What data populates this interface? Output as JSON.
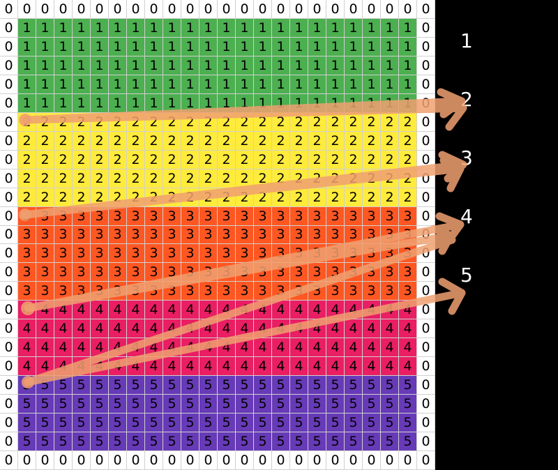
{
  "grid": {
    "rows": [
      [
        0,
        0,
        0,
        0,
        0,
        0,
        0,
        0,
        0,
        0,
        0,
        0,
        0,
        0,
        0,
        0,
        0,
        0,
        0,
        0,
        0,
        0,
        0,
        0
      ],
      [
        0,
        1,
        1,
        1,
        1,
        1,
        1,
        1,
        1,
        1,
        1,
        1,
        1,
        1,
        1,
        1,
        1,
        1,
        1,
        1,
        1,
        1,
        1,
        0
      ],
      [
        0,
        1,
        1,
        1,
        1,
        1,
        1,
        1,
        1,
        1,
        1,
        1,
        1,
        1,
        1,
        1,
        1,
        1,
        1,
        1,
        1,
        1,
        1,
        0
      ],
      [
        0,
        1,
        1,
        1,
        1,
        1,
        1,
        1,
        1,
        1,
        1,
        1,
        1,
        1,
        1,
        1,
        1,
        1,
        1,
        1,
        1,
        1,
        1,
        0
      ],
      [
        0,
        1,
        1,
        1,
        1,
        1,
        1,
        1,
        1,
        1,
        1,
        1,
        1,
        1,
        1,
        1,
        1,
        1,
        1,
        1,
        1,
        1,
        1,
        0
      ],
      [
        0,
        1,
        1,
        1,
        1,
        1,
        1,
        1,
        1,
        1,
        1,
        1,
        1,
        1,
        1,
        1,
        1,
        1,
        1,
        1,
        1,
        1,
        1,
        0
      ],
      [
        0,
        2,
        2,
        2,
        2,
        2,
        2,
        2,
        2,
        2,
        2,
        2,
        2,
        2,
        2,
        2,
        2,
        2,
        2,
        2,
        2,
        2,
        2,
        0
      ],
      [
        0,
        2,
        2,
        2,
        2,
        2,
        2,
        2,
        2,
        2,
        2,
        2,
        2,
        2,
        2,
        2,
        2,
        2,
        2,
        2,
        2,
        2,
        2,
        0
      ],
      [
        0,
        2,
        2,
        2,
        2,
        2,
        2,
        2,
        2,
        2,
        2,
        2,
        2,
        2,
        2,
        2,
        2,
        2,
        2,
        2,
        2,
        2,
        2,
        0
      ],
      [
        0,
        2,
        2,
        2,
        2,
        2,
        2,
        2,
        2,
        2,
        2,
        2,
        2,
        2,
        2,
        2,
        2,
        2,
        2,
        2,
        2,
        2,
        2,
        0
      ],
      [
        0,
        2,
        2,
        2,
        2,
        2,
        2,
        2,
        2,
        2,
        2,
        2,
        2,
        2,
        2,
        2,
        2,
        2,
        2,
        2,
        2,
        2,
        2,
        0
      ],
      [
        0,
        3,
        3,
        3,
        3,
        3,
        3,
        3,
        3,
        3,
        3,
        3,
        3,
        3,
        3,
        3,
        3,
        3,
        3,
        3,
        3,
        3,
        3,
        0
      ],
      [
        0,
        3,
        3,
        3,
        3,
        3,
        3,
        3,
        3,
        3,
        3,
        3,
        3,
        3,
        3,
        3,
        3,
        3,
        3,
        3,
        3,
        3,
        3,
        0
      ],
      [
        0,
        3,
        3,
        3,
        3,
        3,
        3,
        3,
        3,
        3,
        3,
        3,
        3,
        3,
        3,
        3,
        3,
        3,
        3,
        3,
        3,
        3,
        3,
        0
      ],
      [
        0,
        3,
        3,
        3,
        3,
        3,
        3,
        3,
        3,
        3,
        3,
        3,
        3,
        3,
        3,
        3,
        3,
        3,
        3,
        3,
        3,
        3,
        3,
        0
      ],
      [
        0,
        3,
        3,
        3,
        3,
        3,
        3,
        3,
        3,
        3,
        3,
        3,
        3,
        3,
        3,
        3,
        3,
        3,
        3,
        3,
        3,
        3,
        3,
        0
      ],
      [
        0,
        4,
        4,
        4,
        4,
        4,
        4,
        4,
        4,
        4,
        4,
        4,
        4,
        4,
        4,
        4,
        4,
        4,
        4,
        4,
        4,
        4,
        4,
        0
      ],
      [
        0,
        4,
        4,
        4,
        4,
        4,
        4,
        4,
        4,
        4,
        4,
        4,
        4,
        4,
        4,
        4,
        4,
        4,
        4,
        4,
        4,
        4,
        4,
        0
      ],
      [
        0,
        4,
        4,
        4,
        4,
        4,
        4,
        4,
        4,
        4,
        4,
        4,
        4,
        4,
        4,
        4,
        4,
        4,
        4,
        4,
        4,
        4,
        4,
        0
      ],
      [
        0,
        4,
        4,
        4,
        4,
        4,
        4,
        4,
        4,
        4,
        4,
        4,
        4,
        4,
        4,
        4,
        4,
        4,
        4,
        4,
        4,
        4,
        4,
        0
      ],
      [
        0,
        5,
        5,
        5,
        5,
        5,
        5,
        5,
        5,
        5,
        5,
        5,
        5,
        5,
        5,
        5,
        5,
        5,
        5,
        5,
        5,
        5,
        5,
        0
      ],
      [
        0,
        5,
        5,
        5,
        5,
        5,
        5,
        5,
        5,
        5,
        5,
        5,
        5,
        5,
        5,
        5,
        5,
        5,
        5,
        5,
        5,
        5,
        5,
        0
      ],
      [
        0,
        5,
        5,
        5,
        5,
        5,
        5,
        5,
        5,
        5,
        5,
        5,
        5,
        5,
        5,
        5,
        5,
        5,
        5,
        5,
        5,
        5,
        5,
        0
      ],
      [
        0,
        5,
        5,
        5,
        5,
        5,
        5,
        5,
        5,
        5,
        5,
        5,
        5,
        5,
        5,
        5,
        5,
        5,
        5,
        5,
        5,
        5,
        5,
        0
      ],
      [
        0,
        0,
        0,
        0,
        0,
        0,
        0,
        0,
        0,
        0,
        0,
        0,
        0,
        0,
        0,
        0,
        0,
        0,
        0,
        0,
        0,
        0,
        0,
        0
      ]
    ]
  },
  "band_colors": {
    "0": "#ffffff",
    "1": "#4caf50",
    "2": "#ffeb3b",
    "3": "#ff5722",
    "4": "#e91e63",
    "5": "#673ab7"
  },
  "labels": [
    "1",
    "2",
    "3",
    "4",
    "5"
  ],
  "arrow_color": "#f0a070"
}
